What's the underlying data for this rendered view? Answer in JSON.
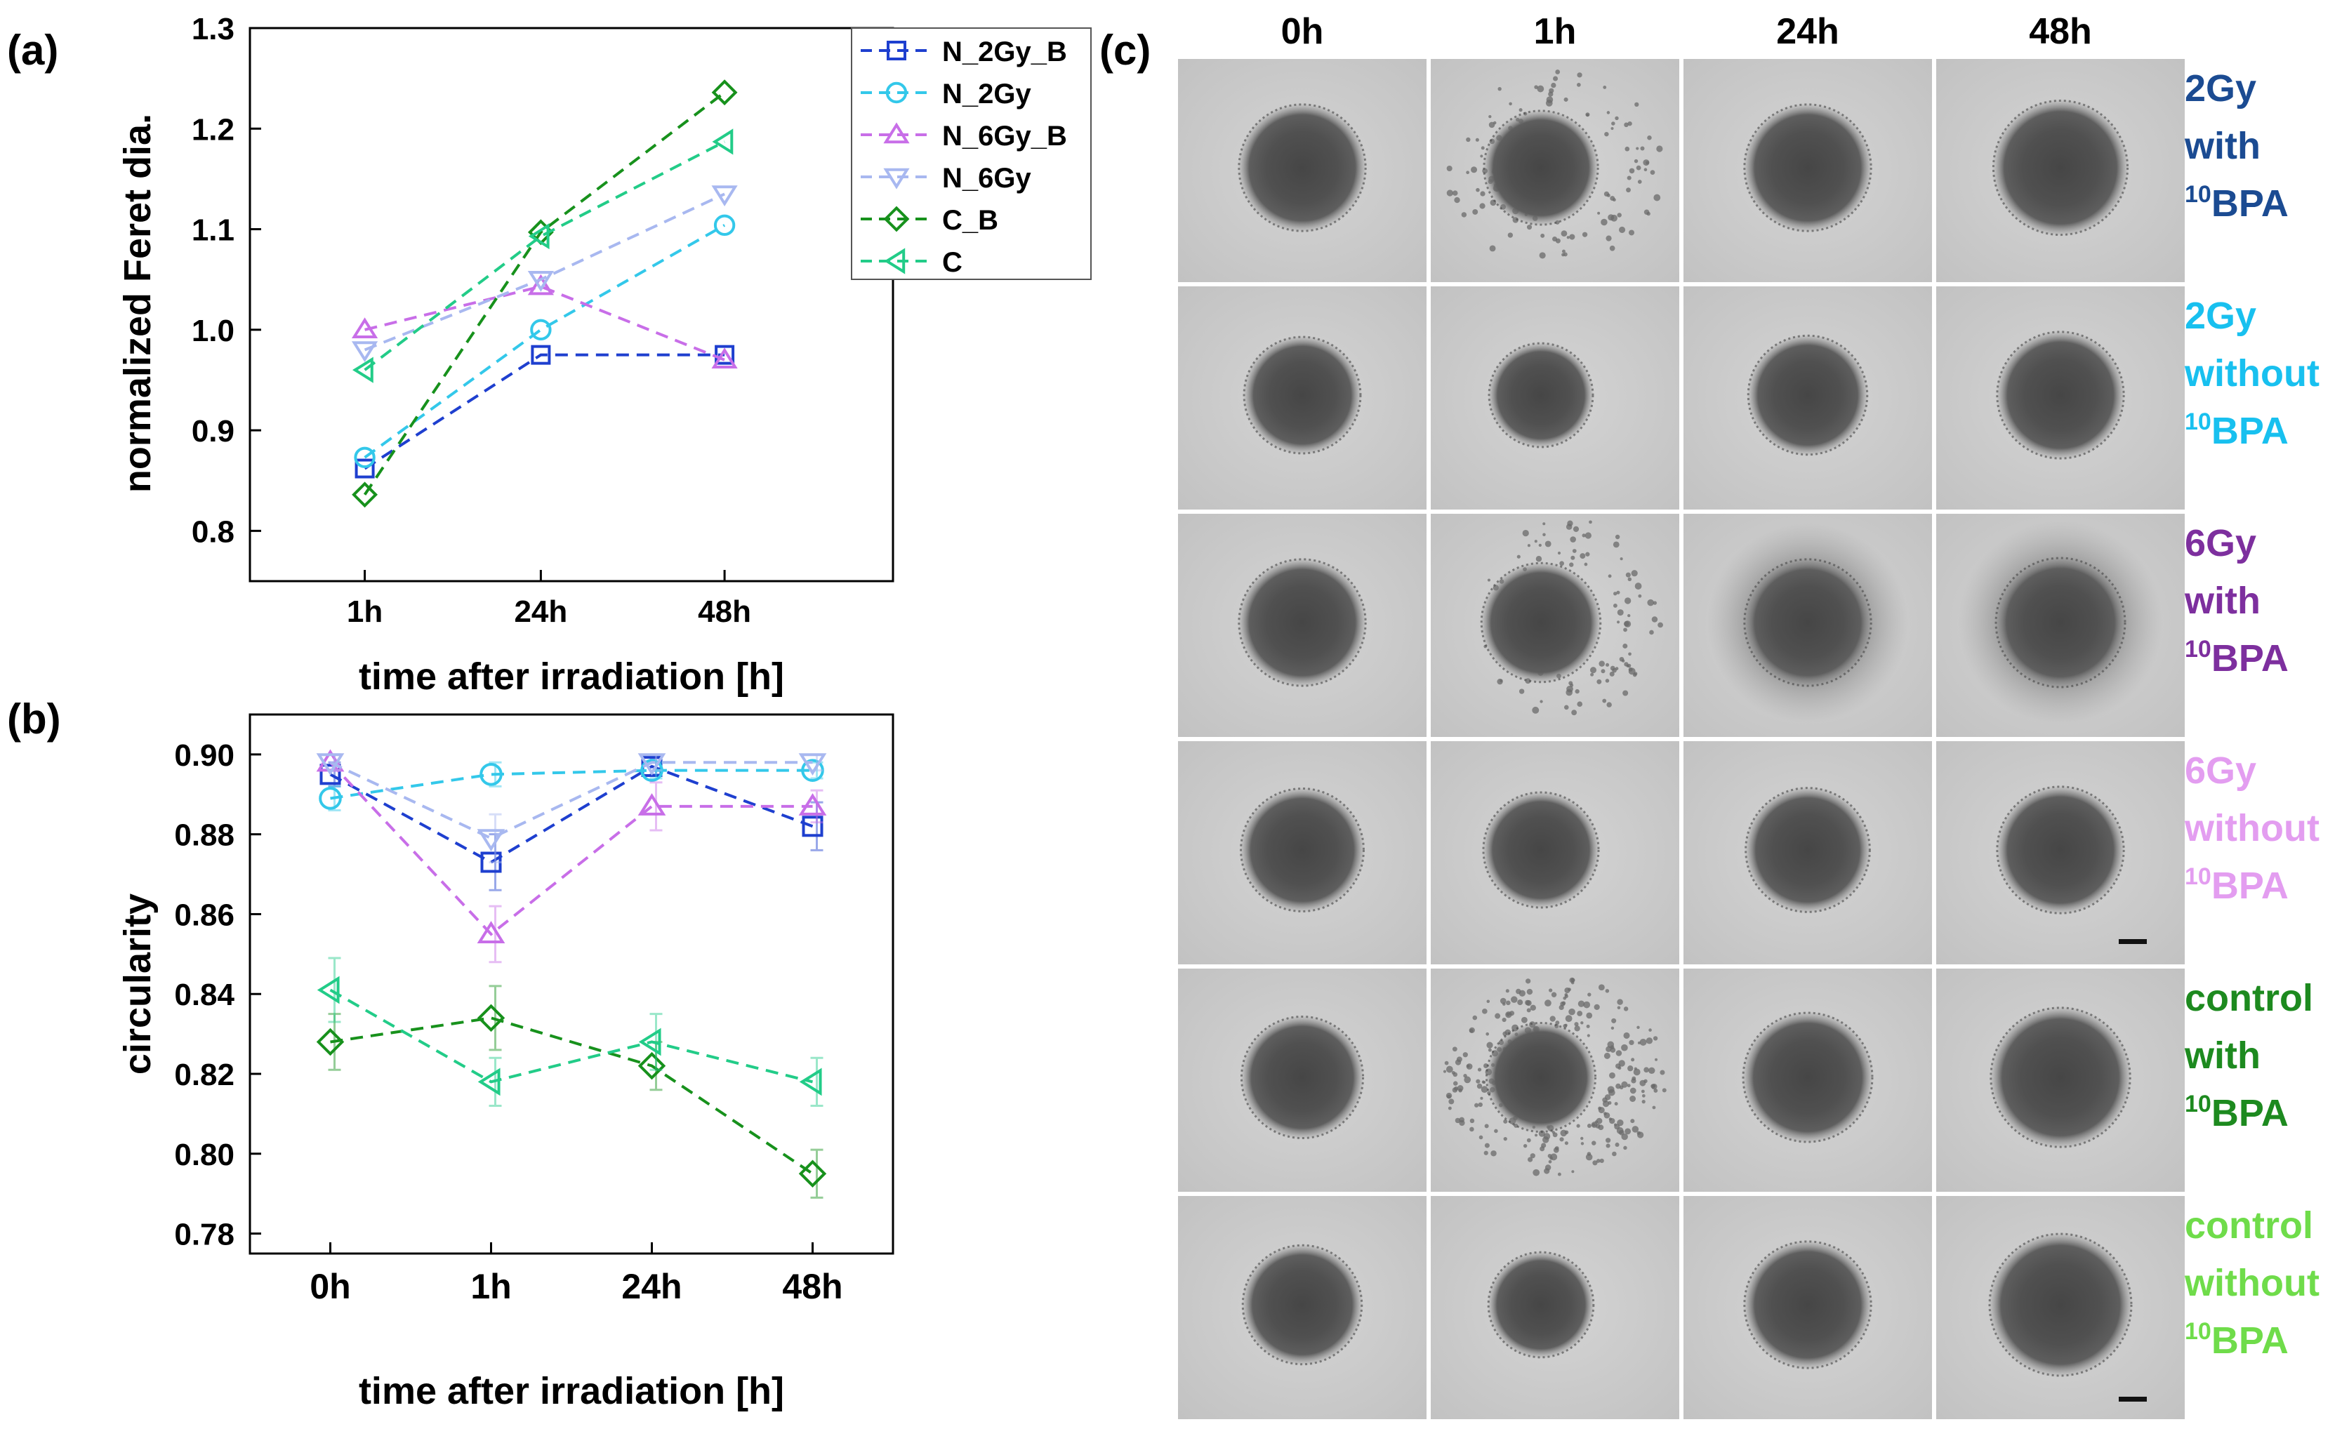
{
  "panels": {
    "a": "(a)",
    "b": "(b)",
    "c": "(c)"
  },
  "chart_data": [
    {
      "id": "a",
      "type": "line",
      "title": "",
      "xlabel": "time after irradiation [h]",
      "ylabel": "normalized Feret dia.",
      "categories": [
        "1h",
        "24h",
        "48h"
      ],
      "x": [
        1,
        24,
        48
      ],
      "xlim": [
        -14,
        70
      ],
      "ylim": [
        0.75,
        1.3
      ],
      "yticks": [
        0.8,
        0.9,
        1.0,
        1.1,
        1.2,
        1.3
      ],
      "ytick_labels": [
        "0.8",
        "0.9",
        "1.0",
        "1.1",
        "1.2",
        "1.3"
      ],
      "legend_position": "top-right",
      "series": [
        {
          "name": "N_2Gy_B",
          "marker": "square",
          "color": "#1e3fcf",
          "values": [
            0.862,
            0.975,
            0.975
          ]
        },
        {
          "name": "N_2Gy",
          "marker": "circle",
          "color": "#33c8ea",
          "values": [
            0.873,
            1.0,
            1.104
          ]
        },
        {
          "name": "N_6Gy_B",
          "marker": "triangle-up",
          "color": "#c86ee8",
          "values": [
            1.0,
            1.043,
            0.97
          ]
        },
        {
          "name": "N_6Gy",
          "marker": "triangle-down",
          "color": "#a8b8f0",
          "values": [
            0.98,
            1.05,
            1.135
          ]
        },
        {
          "name": "C_B",
          "marker": "diamond",
          "color": "#17911c",
          "values": [
            0.836,
            1.097,
            1.236
          ]
        },
        {
          "name": "C",
          "marker": "triangle-left",
          "color": "#22cc88",
          "values": [
            0.96,
            1.093,
            1.187
          ]
        }
      ]
    },
    {
      "id": "b",
      "type": "line",
      "title": "",
      "xlabel": "time after irradiation [h]",
      "ylabel": "circularity",
      "categories": [
        "0h",
        "1h",
        "24h",
        "48h"
      ],
      "x": [
        0,
        1,
        24,
        48
      ],
      "xlim": [
        -0.5,
        3.5
      ],
      "ylim": [
        0.775,
        0.91
      ],
      "yticks": [
        0.78,
        0.8,
        0.82,
        0.84,
        0.86,
        0.88,
        0.9
      ],
      "ytick_labels": [
        "0.78",
        "0.80",
        "0.82",
        "0.84",
        "0.86",
        "0.88",
        "0.90"
      ],
      "series": [
        {
          "name": "N_2Gy_B",
          "marker": "square",
          "color": "#1e3fcf",
          "values": [
            0.895,
            0.873,
            0.897,
            0.882
          ],
          "errors": [
            0.003,
            0.007,
            0.002,
            0.006
          ]
        },
        {
          "name": "N_2Gy",
          "marker": "circle",
          "color": "#33c8ea",
          "values": [
            0.889,
            0.895,
            0.896,
            0.896
          ],
          "errors": [
            0.003,
            0.003,
            0.002,
            0.002
          ]
        },
        {
          "name": "N_6Gy_B",
          "marker": "triangle-up",
          "color": "#c86ee8",
          "values": [
            0.898,
            0.855,
            0.887,
            0.887
          ],
          "errors": [
            0.002,
            0.007,
            0.006,
            0.004
          ]
        },
        {
          "name": "N_6Gy",
          "marker": "triangle-down",
          "color": "#a8b8f0",
          "values": [
            0.898,
            0.879,
            0.898,
            0.898
          ],
          "errors": [
            0.002,
            0.006,
            0.002,
            0.002
          ]
        },
        {
          "name": "C_B",
          "marker": "diamond",
          "color": "#17911c",
          "values": [
            0.828,
            0.834,
            0.822,
            0.795
          ],
          "errors": [
            0.007,
            0.008,
            0.006,
            0.006
          ]
        },
        {
          "name": "C",
          "marker": "triangle-left",
          "color": "#22cc88",
          "values": [
            0.841,
            0.818,
            0.828,
            0.818
          ],
          "errors": [
            0.008,
            0.006,
            0.007,
            0.006
          ]
        }
      ]
    }
  ],
  "micrographs": {
    "columns": [
      "0h",
      "1h",
      "24h",
      "48h"
    ],
    "rows": [
      {
        "lines": [
          "2Gy",
          "with"
        ],
        "sup": "10",
        "last": "BPA",
        "color": "#1b4b92"
      },
      {
        "lines": [
          "2Gy",
          "without"
        ],
        "sup": "10",
        "last": "BPA",
        "color": "#18c0ef"
      },
      {
        "lines": [
          "6Gy",
          "with"
        ],
        "sup": "10",
        "last": "BPA",
        "color": "#7d2f9e"
      },
      {
        "lines": [
          "6Gy",
          "without"
        ],
        "sup": "10",
        "last": "BPA",
        "color": "#e39df0"
      },
      {
        "lines": [
          "control",
          "with"
        ],
        "sup": "10",
        "last": "BPA",
        "color": "#1d8a1f"
      },
      {
        "lines": [
          "control",
          "without"
        ],
        "sup": "10",
        "last": "BPA",
        "color": "#6fdc4a"
      }
    ],
    "spheroid_scale": [
      [
        1.0,
        0.9,
        1.0,
        1.06
      ],
      [
        0.92,
        0.82,
        0.94,
        1.0
      ],
      [
        1.0,
        0.94,
        1.0,
        1.02
      ],
      [
        0.97,
        0.91,
        0.98,
        1.0
      ],
      [
        0.96,
        0.86,
        1.02,
        1.1
      ],
      [
        0.94,
        0.83,
        1.0,
        1.12
      ]
    ]
  }
}
